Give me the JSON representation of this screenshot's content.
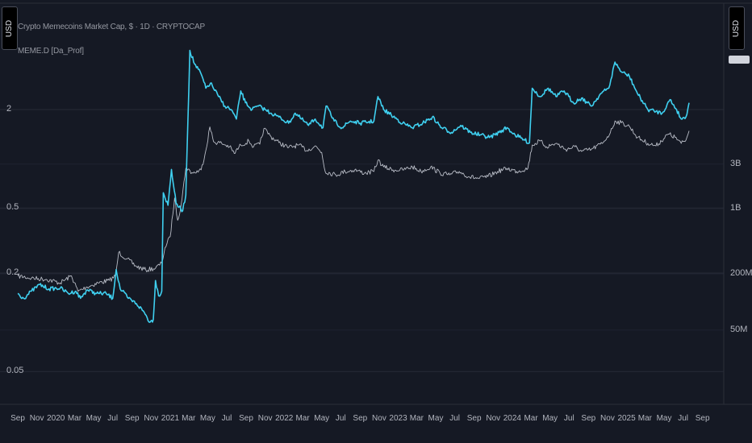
{
  "legend": {
    "line1": "Crypto Memecoins Market Cap, $ · 1D · CRYPTOCAP",
    "line2": "MEME.D [Da_Prof]"
  },
  "left_scale_button": "USD",
  "right_scale_button": "USD",
  "colors": {
    "background": "#151924",
    "dominance": "#3fd0f0",
    "marketcap": "#b8bcc6",
    "grid": "#262a36"
  },
  "chart_data": {
    "type": "line",
    "title": "Crypto Memecoins Market Cap, $ · 1D · CRYPTOCAP",
    "x_range": [
      "2019-09-01",
      "2025-09-20"
    ],
    "x_ticks": [
      {
        "date": "2019-09-01",
        "label": "Sep"
      },
      {
        "date": "2019-11-01",
        "label": "Nov"
      },
      {
        "date": "2020-01-01",
        "label": "2020"
      },
      {
        "date": "2020-03-01",
        "label": "Mar"
      },
      {
        "date": "2020-05-01",
        "label": "May"
      },
      {
        "date": "2020-07-01",
        "label": "Jul"
      },
      {
        "date": "2020-09-01",
        "label": "Sep"
      },
      {
        "date": "2020-11-01",
        "label": "Nov"
      },
      {
        "date": "2021-01-01",
        "label": "2021"
      },
      {
        "date": "2021-03-01",
        "label": "Mar"
      },
      {
        "date": "2021-05-01",
        "label": "May"
      },
      {
        "date": "2021-07-01",
        "label": "Jul"
      },
      {
        "date": "2021-09-01",
        "label": "Sep"
      },
      {
        "date": "2021-11-01",
        "label": "Nov"
      },
      {
        "date": "2022-01-01",
        "label": "2022"
      },
      {
        "date": "2022-03-01",
        "label": "Mar"
      },
      {
        "date": "2022-05-01",
        "label": "May"
      },
      {
        "date": "2022-07-01",
        "label": "Jul"
      },
      {
        "date": "2022-09-01",
        "label": "Sep"
      },
      {
        "date": "2022-11-01",
        "label": "Nov"
      },
      {
        "date": "2023-01-01",
        "label": "2023"
      },
      {
        "date": "2023-03-01",
        "label": "Mar"
      },
      {
        "date": "2023-05-01",
        "label": "May"
      },
      {
        "date": "2023-07-01",
        "label": "Jul"
      },
      {
        "date": "2023-09-01",
        "label": "Sep"
      },
      {
        "date": "2023-11-01",
        "label": "Nov"
      },
      {
        "date": "2024-01-01",
        "label": "2024"
      },
      {
        "date": "2024-03-01",
        "label": "Mar"
      },
      {
        "date": "2024-05-01",
        "label": "May"
      },
      {
        "date": "2024-07-01",
        "label": "Jul"
      },
      {
        "date": "2024-09-01",
        "label": "Sep"
      },
      {
        "date": "2024-11-01",
        "label": "Nov"
      },
      {
        "date": "2025-01-01",
        "label": "2025"
      },
      {
        "date": "2025-03-01",
        "label": "Mar"
      },
      {
        "date": "2025-05-01",
        "label": "May"
      },
      {
        "date": "2025-07-01",
        "label": "Jul"
      },
      {
        "date": "2025-09-01",
        "label": "Sep"
      }
    ],
    "left_axis": {
      "scale": "log",
      "ticks": [
        {
          "value": 2,
          "label": "2"
        },
        {
          "value": 0.5,
          "label": "0.5"
        },
        {
          "value": 0.2,
          "label": "0.2"
        },
        {
          "value": 0.05,
          "label": "0.05"
        }
      ]
    },
    "right_axis": {
      "scale": "log",
      "ticks": [
        {
          "value": 3000000000,
          "label": "3B"
        },
        {
          "value": 1000000000,
          "label": "1B"
        },
        {
          "value": 200000000,
          "label": "200M"
        },
        {
          "value": 50000000,
          "label": "50M"
        }
      ]
    },
    "grid": true,
    "series": [
      {
        "name": "MEME.D [Da_Prof]",
        "axis": "left",
        "points": [
          [
            "2019-09-01",
            0.15
          ],
          [
            "2019-09-20",
            0.14
          ],
          [
            "2019-10-15",
            0.155
          ],
          [
            "2019-11-10",
            0.17
          ],
          [
            "2019-12-10",
            0.16
          ],
          [
            "2020-01-15",
            0.162
          ],
          [
            "2020-02-10",
            0.15
          ],
          [
            "2020-03-05",
            0.155
          ],
          [
            "2020-03-20",
            0.14
          ],
          [
            "2020-04-10",
            0.158
          ],
          [
            "2020-05-10",
            0.15
          ],
          [
            "2020-06-10",
            0.15
          ],
          [
            "2020-07-01",
            0.14
          ],
          [
            "2020-07-12",
            0.21
          ],
          [
            "2020-07-25",
            0.16
          ],
          [
            "2020-08-20",
            0.14
          ],
          [
            "2020-09-15",
            0.13
          ],
          [
            "2020-10-10",
            0.115
          ],
          [
            "2020-10-28",
            0.1
          ],
          [
            "2020-11-08",
            0.104
          ],
          [
            "2020-11-15",
            0.18
          ],
          [
            "2020-11-25",
            0.145
          ],
          [
            "2020-12-05",
            0.155
          ],
          [
            "2020-12-10",
            0.62
          ],
          [
            "2020-12-25",
            0.52
          ],
          [
            "2021-01-05",
            0.86
          ],
          [
            "2021-01-20",
            0.53
          ],
          [
            "2021-02-10",
            0.48
          ],
          [
            "2021-02-20",
            0.6
          ],
          [
            "2021-03-05",
            4.6
          ],
          [
            "2021-03-20",
            3.8
          ],
          [
            "2021-04-10",
            3.3
          ],
          [
            "2021-04-25",
            2.7
          ],
          [
            "2021-05-10",
            2.9
          ],
          [
            "2021-06-05",
            2.4
          ],
          [
            "2021-06-25",
            2.1
          ],
          [
            "2021-07-15",
            2.0
          ],
          [
            "2021-08-01",
            1.75
          ],
          [
            "2021-08-15",
            2.6
          ],
          [
            "2021-08-30",
            2.2
          ],
          [
            "2021-09-20",
            2.0
          ],
          [
            "2021-10-10",
            2.1
          ],
          [
            "2021-11-01",
            2.0
          ],
          [
            "2021-11-20",
            1.9
          ],
          [
            "2021-12-15",
            1.8
          ],
          [
            "2022-01-15",
            1.65
          ],
          [
            "2022-02-05",
            1.9
          ],
          [
            "2022-02-25",
            1.75
          ],
          [
            "2022-03-20",
            1.6
          ],
          [
            "2022-04-10",
            1.75
          ],
          [
            "2022-05-05",
            1.55
          ],
          [
            "2022-05-15",
            2.1
          ],
          [
            "2022-06-10",
            1.7
          ],
          [
            "2022-07-05",
            1.55
          ],
          [
            "2022-08-01",
            1.7
          ],
          [
            "2022-09-01",
            1.65
          ],
          [
            "2022-10-15",
            1.7
          ],
          [
            "2022-10-28",
            2.4
          ],
          [
            "2022-11-15",
            2.0
          ],
          [
            "2022-12-10",
            1.85
          ],
          [
            "2023-01-15",
            1.65
          ],
          [
            "2023-02-15",
            1.55
          ],
          [
            "2023-03-20",
            1.65
          ],
          [
            "2023-04-20",
            1.8
          ],
          [
            "2023-05-20",
            1.55
          ],
          [
            "2023-06-20",
            1.45
          ],
          [
            "2023-07-20",
            1.6
          ],
          [
            "2023-08-20",
            1.45
          ],
          [
            "2023-09-20",
            1.4
          ],
          [
            "2023-10-20",
            1.35
          ],
          [
            "2023-11-20",
            1.45
          ],
          [
            "2023-12-15",
            1.55
          ],
          [
            "2024-01-10",
            1.4
          ],
          [
            "2024-02-10",
            1.3
          ],
          [
            "2024-02-25",
            1.25
          ],
          [
            "2024-03-05",
            2.7
          ],
          [
            "2024-03-30",
            2.4
          ],
          [
            "2024-04-25",
            2.7
          ],
          [
            "2024-05-20",
            2.4
          ],
          [
            "2024-06-15",
            2.6
          ],
          [
            "2024-07-15",
            2.2
          ],
          [
            "2024-08-10",
            2.35
          ],
          [
            "2024-09-10",
            2.1
          ],
          [
            "2024-10-10",
            2.5
          ],
          [
            "2024-11-05",
            2.7
          ],
          [
            "2024-11-25",
            3.9
          ],
          [
            "2024-12-15",
            3.4
          ],
          [
            "2025-01-10",
            3.2
          ],
          [
            "2025-02-05",
            2.5
          ],
          [
            "2025-03-10",
            2.0
          ],
          [
            "2025-04-05",
            1.95
          ],
          [
            "2025-04-25",
            1.9
          ],
          [
            "2025-05-20",
            2.3
          ],
          [
            "2025-06-10",
            2.0
          ],
          [
            "2025-06-25",
            1.75
          ],
          [
            "2025-07-10",
            1.8
          ],
          [
            "2025-07-20",
            2.2
          ]
        ]
      },
      {
        "name": "Crypto Memecoins Market Cap",
        "axis": "right",
        "points": [
          [
            "2019-09-01",
            190000000
          ],
          [
            "2019-10-15",
            180000000
          ],
          [
            "2019-12-01",
            175000000
          ],
          [
            "2020-01-15",
            160000000
          ],
          [
            "2020-02-20",
            190000000
          ],
          [
            "2020-03-12",
            130000000
          ],
          [
            "2020-04-10",
            145000000
          ],
          [
            "2020-05-15",
            160000000
          ],
          [
            "2020-06-20",
            170000000
          ],
          [
            "2020-07-10",
            190000000
          ],
          [
            "2020-07-20",
            340000000
          ],
          [
            "2020-08-15",
            290000000
          ],
          [
            "2020-09-15",
            240000000
          ],
          [
            "2020-10-15",
            220000000
          ],
          [
            "2020-11-15",
            230000000
          ],
          [
            "2020-12-05",
            260000000
          ],
          [
            "2020-12-15",
            380000000
          ],
          [
            "2021-01-01",
            500000000
          ],
          [
            "2021-01-15",
            1300000000
          ],
          [
            "2021-01-25",
            750000000
          ],
          [
            "2021-02-05",
            1100000000
          ],
          [
            "2021-02-20",
            2700000000
          ],
          [
            "2021-03-15",
            2400000000
          ],
          [
            "2021-04-10",
            2600000000
          ],
          [
            "2021-04-25",
            4200000000
          ],
          [
            "2021-05-08",
            7500000000
          ],
          [
            "2021-05-20",
            5200000000
          ],
          [
            "2021-06-15",
            5000000000
          ],
          [
            "2021-07-10",
            4600000000
          ],
          [
            "2021-07-25",
            3900000000
          ],
          [
            "2021-08-15",
            4800000000
          ],
          [
            "2021-09-10",
            5300000000
          ],
          [
            "2021-09-25",
            4600000000
          ],
          [
            "2021-10-15",
            4900000000
          ],
          [
            "2021-10-28",
            7200000000
          ],
          [
            "2021-11-20",
            5900000000
          ],
          [
            "2021-12-15",
            5100000000
          ],
          [
            "2022-01-15",
            4500000000
          ],
          [
            "2022-02-15",
            4800000000
          ],
          [
            "2022-03-15",
            4200000000
          ],
          [
            "2022-04-10",
            4700000000
          ],
          [
            "2022-05-01",
            4000000000
          ],
          [
            "2022-05-12",
            2500000000
          ],
          [
            "2022-06-15",
            2300000000
          ],
          [
            "2022-07-15",
            2500000000
          ],
          [
            "2022-08-15",
            2600000000
          ],
          [
            "2022-09-15",
            2400000000
          ],
          [
            "2022-10-15",
            2500000000
          ],
          [
            "2022-10-28",
            3300000000
          ],
          [
            "2022-11-15",
            2800000000
          ],
          [
            "2022-12-15",
            2600000000
          ],
          [
            "2023-01-15",
            2600000000
          ],
          [
            "2023-02-15",
            2800000000
          ],
          [
            "2023-03-15",
            2500000000
          ],
          [
            "2023-04-15",
            2800000000
          ],
          [
            "2023-05-15",
            2400000000
          ],
          [
            "2023-06-15",
            2300000000
          ],
          [
            "2023-07-15",
            2500000000
          ],
          [
            "2023-08-15",
            2200000000
          ],
          [
            "2023-09-15",
            2100000000
          ],
          [
            "2023-10-15",
            2200000000
          ],
          [
            "2023-11-15",
            2500000000
          ],
          [
            "2023-12-15",
            2700000000
          ],
          [
            "2024-01-15",
            2500000000
          ],
          [
            "2024-02-20",
            2700000000
          ],
          [
            "2024-03-05",
            4800000000
          ],
          [
            "2024-03-30",
            5300000000
          ],
          [
            "2024-04-20",
            4600000000
          ],
          [
            "2024-05-20",
            5000000000
          ],
          [
            "2024-06-20",
            4300000000
          ],
          [
            "2024-07-20",
            4600000000
          ],
          [
            "2024-08-10",
            4100000000
          ],
          [
            "2024-09-10",
            4300000000
          ],
          [
            "2024-10-15",
            5000000000
          ],
          [
            "2024-11-10",
            6500000000
          ],
          [
            "2024-11-25",
            8700000000
          ],
          [
            "2024-12-15",
            8300000000
          ],
          [
            "2025-01-10",
            7600000000
          ],
          [
            "2025-02-05",
            5800000000
          ],
          [
            "2025-03-10",
            5000000000
          ],
          [
            "2025-04-05",
            4700000000
          ],
          [
            "2025-05-15",
            6300000000
          ],
          [
            "2025-06-05",
            5800000000
          ],
          [
            "2025-06-25",
            5000000000
          ],
          [
            "2025-07-10",
            5400000000
          ],
          [
            "2025-07-20",
            6800000000
          ]
        ]
      }
    ]
  }
}
